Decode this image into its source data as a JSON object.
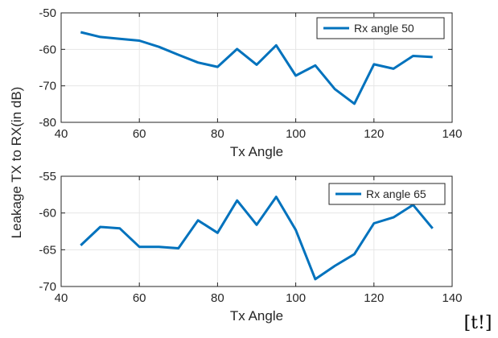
{
  "shared_ylabel": "Leakage TX to RX(in dB)",
  "stray_text": "[t!]",
  "colors": {
    "series": "#0072BD",
    "axis": "#262626",
    "grid": "#e6e6e6"
  },
  "chart_data": [
    {
      "type": "line",
      "title": "",
      "xlabel": "Tx Angle",
      "ylabel": "",
      "xlim": [
        40,
        140
      ],
      "ylim": [
        -80,
        -50
      ],
      "xticks": [
        40,
        60,
        80,
        100,
        120,
        140
      ],
      "yticks": [
        -80,
        -70,
        -60,
        -50
      ],
      "xtick_labels": [
        "40",
        "60",
        "80",
        "100",
        "120",
        "140"
      ],
      "ytick_labels": [
        "-80",
        "-70",
        "-60",
        "-50"
      ],
      "grid": true,
      "legend_position": "top-right",
      "series": [
        {
          "name": "Rx angle 50",
          "x": [
            45,
            50,
            55,
            60,
            65,
            70,
            75,
            80,
            85,
            90,
            95,
            100,
            105,
            110,
            115,
            120,
            125,
            130,
            135
          ],
          "y": [
            -55.3,
            -56.6,
            -57.1,
            -57.6,
            -59.3,
            -61.5,
            -63.6,
            -64.8,
            -59.9,
            -64.2,
            -58.9,
            -67.2,
            -64.4,
            -70.9,
            -74.9,
            -64.1,
            -65.3,
            -61.8,
            -62.1
          ]
        }
      ]
    },
    {
      "type": "line",
      "title": "",
      "xlabel": "Tx Angle",
      "ylabel": "",
      "xlim": [
        40,
        140
      ],
      "ylim": [
        -70,
        -55
      ],
      "xticks": [
        40,
        60,
        80,
        100,
        120,
        140
      ],
      "yticks": [
        -70,
        -65,
        -60,
        -55
      ],
      "xtick_labels": [
        "40",
        "60",
        "80",
        "100",
        "120",
        "140"
      ],
      "ytick_labels": [
        "-70",
        "-65",
        "-60",
        "-55"
      ],
      "grid": true,
      "legend_position": "top-right",
      "series": [
        {
          "name": "Rx angle 65",
          "x": [
            45,
            50,
            55,
            60,
            65,
            70,
            75,
            80,
            85,
            90,
            95,
            100,
            105,
            110,
            115,
            120,
            125,
            130,
            135
          ],
          "y": [
            -64.4,
            -61.9,
            -62.1,
            -64.6,
            -64.6,
            -64.8,
            -61.0,
            -62.7,
            -58.3,
            -61.6,
            -57.8,
            -62.3,
            -69.0,
            -67.2,
            -65.6,
            -61.4,
            -60.6,
            -58.9,
            -62.1
          ]
        }
      ]
    }
  ]
}
